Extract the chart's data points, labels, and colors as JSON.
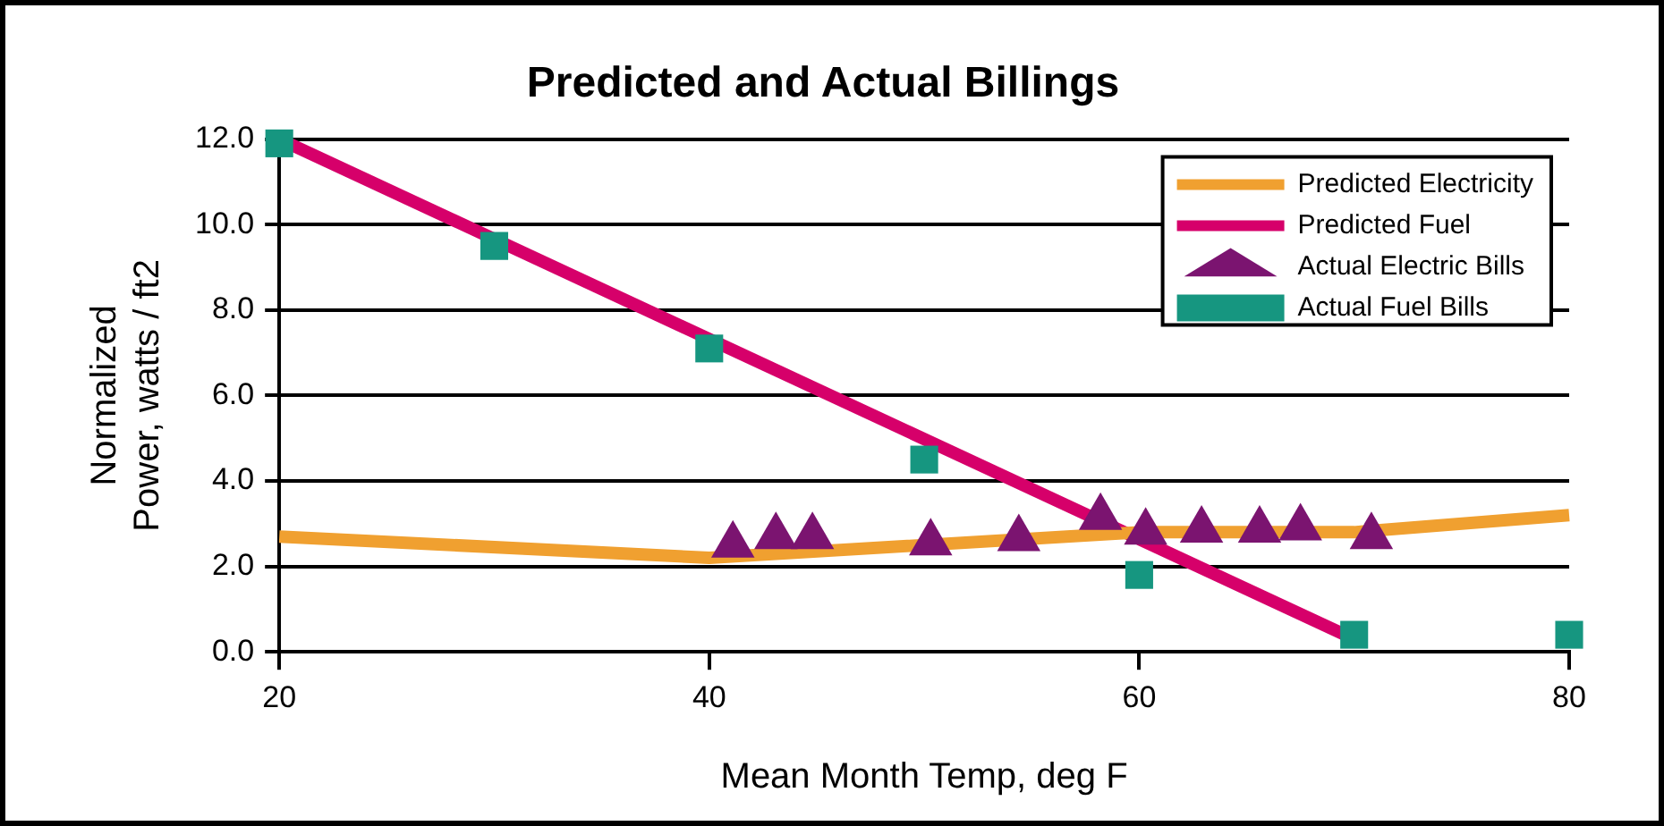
{
  "chart_data": {
    "type": "line",
    "title": "Predicted and Actual Billings",
    "xlabel": "Mean Month Temp, deg F",
    "ylabel": "Normalized\nPower, watts / ft2",
    "xlim": [
      20,
      80
    ],
    "xticks": [
      20,
      40,
      60,
      80
    ],
    "ylim": [
      0,
      12
    ],
    "yticks": [
      {
        "value": 0,
        "label": "0.0"
      },
      {
        "value": 2,
        "label": "2.0"
      },
      {
        "value": 4,
        "label": "4.0"
      },
      {
        "value": 6,
        "label": "6.0"
      },
      {
        "value": 8,
        "label": "8.0"
      },
      {
        "value": 10,
        "label": "10.0"
      },
      {
        "value": 12,
        "label": "12.0"
      }
    ],
    "grid": "y",
    "legend": "top right",
    "series": [
      {
        "name": "Predicted Electricity",
        "marker": "none",
        "color": "#f0a030",
        "x": [
          20,
          40,
          60,
          70,
          80
        ],
        "values": [
          2.7,
          2.2,
          2.8,
          2.8,
          3.2
        ]
      },
      {
        "name": "Predicted Fuel",
        "marker": "none",
        "color": "#d6006a",
        "x": [
          20,
          70
        ],
        "values": [
          12.0,
          0.3
        ]
      },
      {
        "name": "Actual Electric Bills",
        "type": "scatter",
        "marker": "triangle",
        "color": "#7b1470",
        "x": [
          41.1,
          43.1,
          44.8,
          50.3,
          54.4,
          58.2,
          60.3,
          62.9,
          65.6,
          67.5,
          70.8
        ],
        "values": [
          2.5,
          2.7,
          2.7,
          2.55,
          2.65,
          3.15,
          2.8,
          2.85,
          2.85,
          2.9,
          2.7
        ]
      },
      {
        "name": "Actual Fuel Bills",
        "type": "scatter",
        "marker": "square",
        "color": "#169680",
        "x": [
          20,
          30,
          40,
          50,
          60,
          70,
          80
        ],
        "values": [
          11.9,
          9.5,
          7.1,
          4.5,
          1.8,
          0.4,
          0.4
        ]
      }
    ]
  }
}
